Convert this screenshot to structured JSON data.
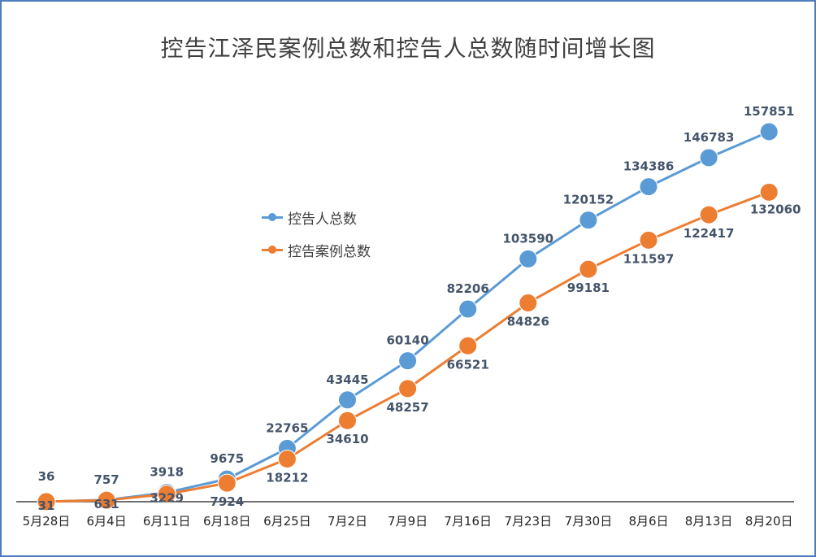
{
  "chart_data": {
    "type": "line",
    "title": "控告江泽民案例总数和控告人总数随时间增长图",
    "categories": [
      "5月28日",
      "6月4日",
      "6月11日",
      "6月18日",
      "6月25日",
      "7月2日",
      "7月9日",
      "7月16日",
      "7月23日",
      "7月30日",
      "8月6日",
      "8月13日",
      "8月20日"
    ],
    "series": [
      {
        "name": "控告人总数",
        "color": "#5b9bd5",
        "values": [
          36,
          757,
          3918,
          9675,
          22765,
          43445,
          60140,
          82206,
          103590,
          120152,
          134386,
          146783,
          157851
        ]
      },
      {
        "name": "控告案例总数",
        "color": "#ed7d31",
        "values": [
          31,
          631,
          3229,
          7924,
          18212,
          34610,
          48257,
          66521,
          84826,
          99181,
          111597,
          122417,
          132060
        ]
      }
    ],
    "ylim": [
      0,
      170000
    ],
    "grid": false,
    "legend_position": "center-left"
  }
}
